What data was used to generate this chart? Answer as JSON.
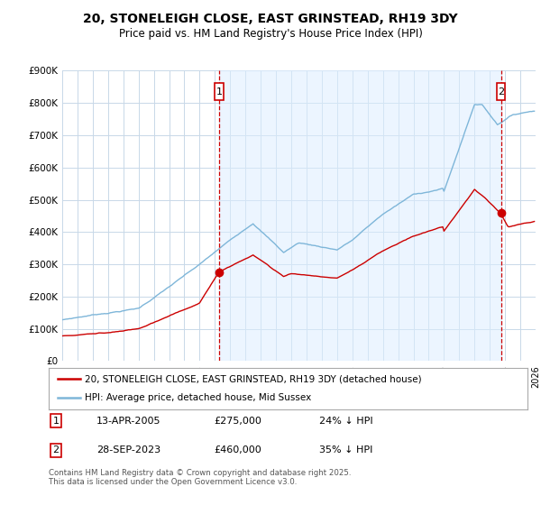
{
  "title": "20, STONELEIGH CLOSE, EAST GRINSTEAD, RH19 3DY",
  "subtitle": "Price paid vs. HM Land Registry's House Price Index (HPI)",
  "x_start_year": 1995,
  "x_end_year": 2026,
  "y_min": 0,
  "y_max": 900000,
  "y_ticks": [
    0,
    100000,
    200000,
    300000,
    400000,
    500000,
    600000,
    700000,
    800000,
    900000
  ],
  "y_tick_labels": [
    "£0",
    "£100K",
    "£200K",
    "£300K",
    "£400K",
    "£500K",
    "£600K",
    "£700K",
    "£800K",
    "£900K"
  ],
  "hpi_color": "#7eb6d9",
  "price_color": "#cc0000",
  "vline_color": "#cc0000",
  "shade_color": "#ddeeff",
  "purchase1_year": 2005.28,
  "purchase1_price": 275000,
  "purchase1_date": "13-APR-2005",
  "purchase1_pct": "24% ↓ HPI",
  "purchase2_year": 2023.74,
  "purchase2_price": 460000,
  "purchase2_date": "28-SEP-2023",
  "purchase2_pct": "35% ↓ HPI",
  "legend_line1": "20, STONELEIGH CLOSE, EAST GRINSTEAD, RH19 3DY (detached house)",
  "legend_line2": "HPI: Average price, detached house, Mid Sussex",
  "footer": "Contains HM Land Registry data © Crown copyright and database right 2025.\nThis data is licensed under the Open Government Licence v3.0.",
  "background_color": "#ffffff",
  "grid_color": "#c8d8e8"
}
